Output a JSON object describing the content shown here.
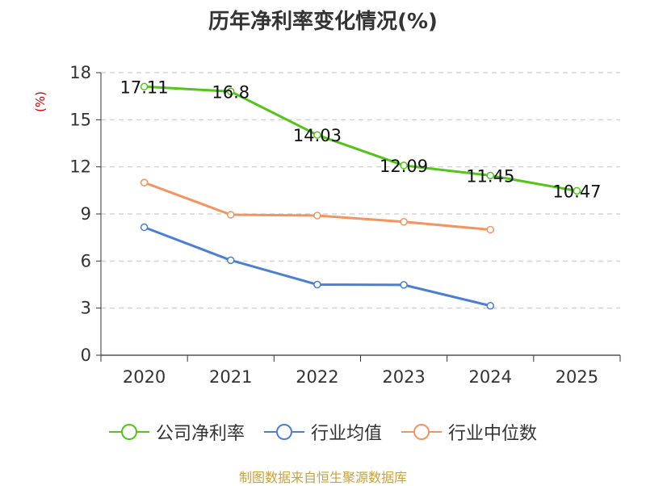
{
  "chart_data": {
    "type": "line",
    "title": "历年净利率变化情况(%)",
    "ylabel": "(%)",
    "xlabel": "",
    "categories": [
      "2020",
      "2021",
      "2022",
      "2023",
      "2024",
      "2025"
    ],
    "ylim": [
      0,
      18
    ],
    "yticks": [
      0,
      3,
      6,
      9,
      12,
      15,
      18
    ],
    "grid": "dashed-horizontal",
    "legend_position": "bottom",
    "series": [
      {
        "name": "公司净利率",
        "color": "#52c41a",
        "values": [
          17.11,
          16.8,
          14.03,
          12.09,
          11.45,
          10.47
        ],
        "labels": [
          "17.11",
          "16.8",
          "14.03",
          "12.09",
          "11.45",
          "10.47"
        ]
      },
      {
        "name": "行业均值",
        "color": "#4a7fd4",
        "values": [
          8.15,
          6.05,
          4.5,
          4.48,
          3.15,
          null
        ]
      },
      {
        "name": "行业中位数",
        "color": "#f39461",
        "values": [
          11.0,
          8.95,
          8.9,
          8.5,
          8.0,
          null
        ]
      }
    ]
  },
  "source": "制图数据来自恒生聚源数据库"
}
